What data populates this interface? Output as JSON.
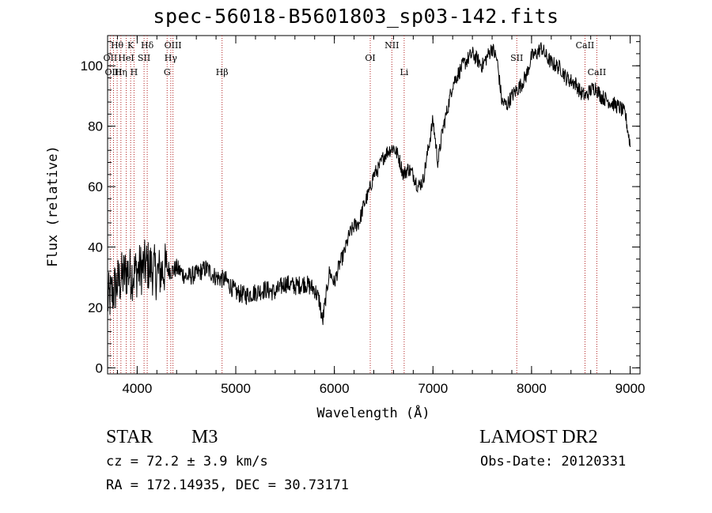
{
  "header": {
    "title": "spec-56018-B5601803_sp03-142.fits"
  },
  "info": {
    "class": "STAR",
    "subclass": "M3",
    "survey": "LAMOST DR2",
    "cz": "cz = 72.2 ± 3.9 km/s",
    "obs_date": "Obs-Date: 20120331",
    "coords": "RA = 172.14935, DEC =  30.73171"
  },
  "chart_data": {
    "type": "line",
    "title": "spec-56018-B5601803_sp03-142.fits",
    "xlabel": "Wavelength (Å)",
    "ylabel": "Flux (relative)",
    "xlim": [
      3700,
      9100
    ],
    "ylim": [
      -2,
      110
    ],
    "xticks": [
      4000,
      5000,
      6000,
      7000,
      8000,
      9000
    ],
    "yticks": [
      0,
      20,
      40,
      60,
      80,
      100
    ],
    "grid": false,
    "line_color": "#000000",
    "marker_color": "#b22222",
    "series": [
      {
        "values_x": [
          3700,
          3750,
          3800,
          3850,
          3900,
          3950,
          4000,
          4050,
          4100,
          4150,
          4200,
          4250,
          4300,
          4350,
          4400,
          4500,
          4600,
          4700,
          4800,
          4900,
          5000,
          5100,
          5200,
          5300,
          5400,
          5500,
          5600,
          5700,
          5800,
          5850,
          5880,
          5900,
          5950,
          6000,
          6050,
          6100,
          6150,
          6200,
          6250,
          6300,
          6350,
          6400,
          6450,
          6500,
          6550,
          6600,
          6650,
          6700,
          6750,
          6800,
          6850,
          6900,
          6950,
          7000,
          7050,
          7100,
          7150,
          7200,
          7300,
          7400,
          7500,
          7550,
          7600,
          7650,
          7700,
          7750,
          7800,
          7850,
          7900,
          7950,
          8000,
          8050,
          8100,
          8150,
          8200,
          8250,
          8300,
          8350,
          8400,
          8450,
          8500,
          8550,
          8600,
          8650,
          8700,
          8750,
          8800,
          8850,
          8900,
          8950,
          9000
        ],
        "values_y": [
          22,
          25,
          28,
          30,
          32,
          31,
          32,
          33,
          34,
          33,
          31,
          32,
          33,
          32,
          33,
          30,
          31,
          33,
          30,
          29,
          25,
          24,
          25,
          26,
          25,
          28,
          27,
          28,
          26,
          22,
          15,
          20,
          32,
          28,
          34,
          38,
          44,
          47,
          48,
          54,
          58,
          64,
          66,
          70,
          72,
          73,
          70,
          64,
          66,
          64,
          60,
          62,
          72,
          82,
          68,
          79,
          86,
          94,
          100,
          104,
          100,
          103,
          106,
          102,
          88,
          87,
          90,
          92,
          94,
          97,
          103,
          104,
          106,
          103,
          101,
          100,
          99,
          96,
          95,
          94,
          91,
          90,
          92,
          93,
          90,
          89,
          88,
          87,
          86,
          84,
          74
        ]
      }
    ],
    "spectral_lines": [
      {
        "label": "Hθ",
        "x": 3797,
        "row": 0
      },
      {
        "label": "OII",
        "x": 3727,
        "row": 1
      },
      {
        "label": "OIII",
        "x": 3760,
        "row": 2
      },
      {
        "label": "HeI",
        "x": 3889,
        "row": 1
      },
      {
        "label": "Hη",
        "x": 3835,
        "row": 2
      },
      {
        "label": "K",
        "x": 3934,
        "row": 0
      },
      {
        "label": "H",
        "x": 3968,
        "row": 2
      },
      {
        "label": "SII",
        "x": 4070,
        "row": 1
      },
      {
        "label": "Hδ",
        "x": 4102,
        "row": 0
      },
      {
        "label": "G",
        "x": 4304,
        "row": 2
      },
      {
        "label": "OIII",
        "x": 4363,
        "row": 0
      },
      {
        "label": "Hγ",
        "x": 4341,
        "row": 1
      },
      {
        "label": "Hβ",
        "x": 4861,
        "row": 2
      },
      {
        "label": "OI",
        "x": 6364,
        "row": 1
      },
      {
        "label": "NII",
        "x": 6583,
        "row": 0
      },
      {
        "label": "Li",
        "x": 6708,
        "row": 2
      },
      {
        "label": "SII",
        "x": 7850,
        "row": 1
      },
      {
        "label": "CaII",
        "x": 8542,
        "row": 0
      },
      {
        "label": "CaII",
        "x": 8662,
        "row": 2
      }
    ]
  }
}
